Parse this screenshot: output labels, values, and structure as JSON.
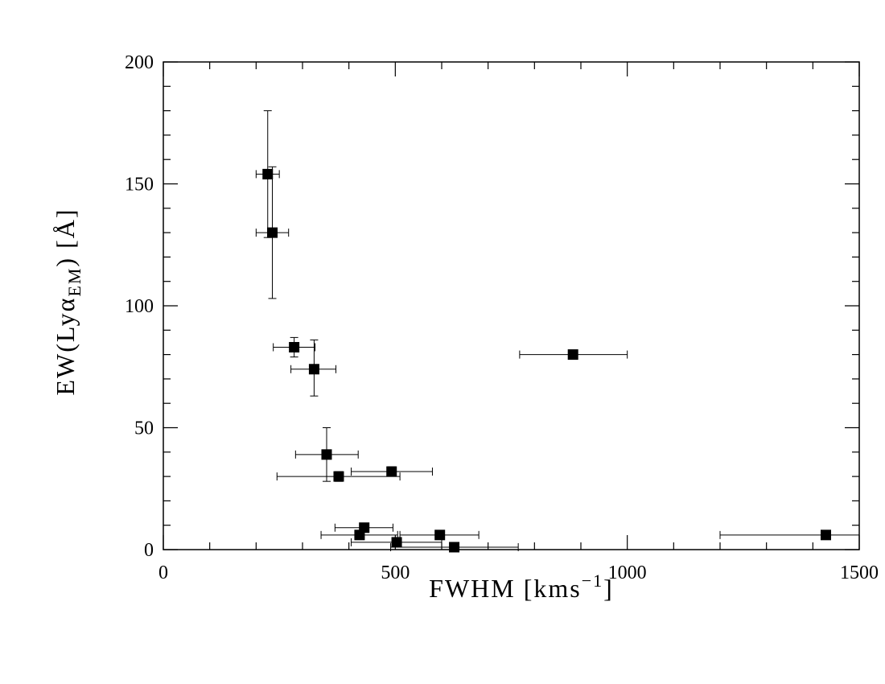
{
  "chart_data": {
    "type": "scatter",
    "xlabel": "FWHM [kms",
    "xlabel_sup": "−1",
    "xlabel_close": "]",
    "ylabel": "EW(Lyα",
    "ylabel_sub": "EM",
    "ylabel_close": ") [Å]",
    "xlim": [
      0,
      1500
    ],
    "ylim": [
      0,
      200
    ],
    "x_ticks": [
      "0",
      "500",
      "1000",
      "1500"
    ],
    "y_ticks": [
      "0",
      "50",
      "100",
      "150",
      "200"
    ],
    "grid": false,
    "marker": "filled-square",
    "points": [
      {
        "x": 225,
        "y": 154,
        "xerr": [
          200,
          250
        ],
        "yerr": [
          128,
          180
        ]
      },
      {
        "x": 235,
        "y": 130,
        "xerr": [
          200,
          270
        ],
        "yerr": [
          103,
          157
        ]
      },
      {
        "x": 282,
        "y": 83,
        "xerr": [
          237,
          327
        ],
        "yerr": [
          79,
          87
        ]
      },
      {
        "x": 325,
        "y": 74,
        "xerr": [
          275,
          372
        ],
        "yerr": [
          63,
          86
        ]
      },
      {
        "x": 883,
        "y": 80,
        "xerr": [
          768,
          1000
        ],
        "yerr": [
          79,
          81
        ]
      },
      {
        "x": 352,
        "y": 39,
        "xerr": [
          285,
          420
        ],
        "yerr": [
          28,
          50
        ]
      },
      {
        "x": 378,
        "y": 30,
        "xerr": [
          245,
          510
        ],
        "yerr": [
          28,
          32
        ]
      },
      {
        "x": 492,
        "y": 32,
        "xerr": [
          405,
          580
        ],
        "yerr": [
          31,
          34
        ]
      },
      {
        "x": 433,
        "y": 9,
        "xerr": [
          370,
          495
        ],
        "yerr": [
          8,
          10
        ]
      },
      {
        "x": 423,
        "y": 6,
        "xerr": [
          340,
          505
        ],
        "yerr": [
          5,
          7
        ]
      },
      {
        "x": 596,
        "y": 6,
        "xerr": [
          510,
          680
        ],
        "yerr": [
          5,
          7
        ]
      },
      {
        "x": 503,
        "y": 3,
        "xerr": [
          405,
          600
        ],
        "yerr": [
          2,
          4
        ]
      },
      {
        "x": 627,
        "y": 1,
        "xerr": [
          490,
          765
        ],
        "yerr": [
          0,
          2
        ]
      },
      {
        "x": 1428,
        "y": 6,
        "xerr": [
          1200,
          1500
        ],
        "yerr": [
          5,
          7
        ]
      }
    ]
  }
}
